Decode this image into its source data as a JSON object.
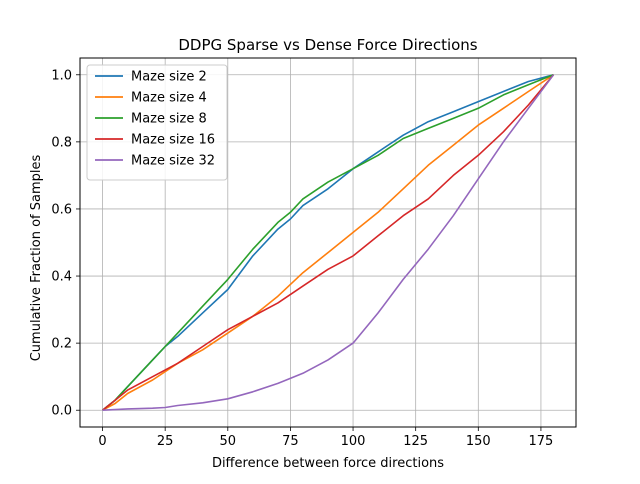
{
  "chart_data": {
    "type": "line",
    "title": "DDPG Sparse vs Dense Force Directions",
    "xlabel": "Difference between force directions",
    "ylabel": "Cumulative Fraction of Samples",
    "xlim": [
      -9,
      189
    ],
    "ylim": [
      -0.05,
      1.05
    ],
    "xticks": [
      0,
      25,
      50,
      75,
      100,
      125,
      150,
      175
    ],
    "yticks": [
      0.0,
      0.2,
      0.4,
      0.6,
      0.8,
      1.0
    ],
    "xtick_labels": [
      "0",
      "25",
      "50",
      "75",
      "100",
      "125",
      "150",
      "175"
    ],
    "ytick_labels": [
      "0.0",
      "0.2",
      "0.4",
      "0.6",
      "0.8",
      "1.0"
    ],
    "grid": true,
    "legend_position": "top-left",
    "series": [
      {
        "name": "Maze size 2",
        "color": "#1f77b4",
        "x": [
          0,
          5,
          10,
          15,
          20,
          25,
          30,
          40,
          50,
          60,
          70,
          75,
          80,
          90,
          100,
          110,
          120,
          130,
          140,
          150,
          160,
          170,
          180
        ],
        "y": [
          0,
          0.03,
          0.07,
          0.11,
          0.15,
          0.19,
          0.22,
          0.29,
          0.36,
          0.46,
          0.54,
          0.57,
          0.61,
          0.66,
          0.72,
          0.77,
          0.82,
          0.86,
          0.89,
          0.92,
          0.95,
          0.98,
          1.0
        ]
      },
      {
        "name": "Maze size 4",
        "color": "#ff7f0e",
        "x": [
          0,
          5,
          10,
          20,
          30,
          40,
          50,
          60,
          70,
          80,
          90,
          100,
          110,
          120,
          130,
          140,
          150,
          160,
          170,
          180
        ],
        "y": [
          0,
          0.02,
          0.05,
          0.09,
          0.14,
          0.18,
          0.23,
          0.28,
          0.34,
          0.41,
          0.47,
          0.53,
          0.59,
          0.66,
          0.73,
          0.79,
          0.85,
          0.9,
          0.95,
          1.0
        ]
      },
      {
        "name": "Maze size 8",
        "color": "#2ca02c",
        "x": [
          0,
          5,
          10,
          15,
          20,
          25,
          30,
          40,
          50,
          60,
          70,
          75,
          80,
          90,
          100,
          110,
          120,
          130,
          140,
          150,
          160,
          170,
          180
        ],
        "y": [
          0,
          0.03,
          0.07,
          0.11,
          0.15,
          0.19,
          0.23,
          0.31,
          0.39,
          0.48,
          0.56,
          0.59,
          0.63,
          0.68,
          0.72,
          0.76,
          0.81,
          0.84,
          0.87,
          0.9,
          0.94,
          0.97,
          1.0
        ]
      },
      {
        "name": "Maze size 16",
        "color": "#d62728",
        "x": [
          0,
          5,
          10,
          20,
          30,
          40,
          50,
          60,
          70,
          80,
          90,
          100,
          110,
          120,
          130,
          140,
          150,
          160,
          170,
          180
        ],
        "y": [
          0,
          0.03,
          0.06,
          0.1,
          0.14,
          0.19,
          0.24,
          0.28,
          0.32,
          0.37,
          0.42,
          0.46,
          0.52,
          0.58,
          0.63,
          0.7,
          0.76,
          0.83,
          0.91,
          1.0
        ]
      },
      {
        "name": "Maze size 32",
        "color": "#9467bd",
        "x": [
          0,
          10,
          20,
          25,
          30,
          40,
          50,
          60,
          70,
          80,
          90,
          100,
          110,
          120,
          130,
          140,
          150,
          160,
          170,
          180
        ],
        "y": [
          0,
          0.004,
          0.006,
          0.008,
          0.014,
          0.022,
          0.034,
          0.055,
          0.08,
          0.11,
          0.15,
          0.2,
          0.29,
          0.39,
          0.48,
          0.58,
          0.69,
          0.8,
          0.9,
          1.0
        ]
      }
    ]
  }
}
